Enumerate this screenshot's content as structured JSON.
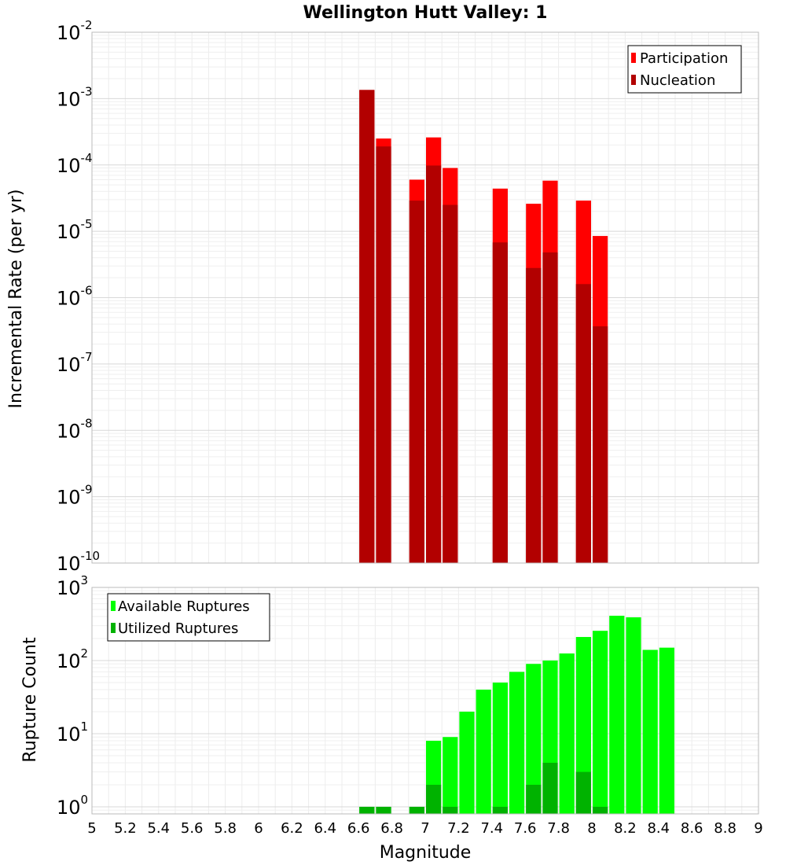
{
  "chart_data": [
    {
      "type": "bar",
      "title": "Wellington Hutt Valley: 1",
      "xlabel": "Magnitude",
      "ylabel": "Incremental Rate (per yr)",
      "yscale": "log",
      "xlim": [
        5,
        9
      ],
      "ylim": [
        1e-10,
        0.01
      ],
      "grid": true,
      "legend_position": "top-right",
      "bin_width": 0.1,
      "yticks": [
        {
          "base": "10",
          "exp": "-2"
        },
        {
          "base": "10",
          "exp": "-3"
        },
        {
          "base": "10",
          "exp": "-4"
        },
        {
          "base": "10",
          "exp": "-5"
        },
        {
          "base": "10",
          "exp": "-6"
        },
        {
          "base": "10",
          "exp": "-7"
        },
        {
          "base": "10",
          "exp": "-8"
        },
        {
          "base": "10",
          "exp": "-9"
        },
        {
          "base": "10",
          "exp": "-10"
        }
      ],
      "series": [
        {
          "name": "Participation",
          "color": "#ff0000",
          "x": [
            6.65,
            6.75,
            6.95,
            7.05,
            7.15,
            7.45,
            7.65,
            7.75,
            7.95,
            8.05
          ],
          "values": [
            0.00135,
            0.00025,
            6e-05,
            0.00026,
            9e-05,
            4.4e-05,
            2.6e-05,
            5.8e-05,
            2.9e-05,
            8.5e-06
          ]
        },
        {
          "name": "Nucleation",
          "color": "#b20000",
          "x": [
            6.65,
            6.75,
            6.95,
            7.05,
            7.15,
            7.45,
            7.65,
            7.75,
            7.95,
            8.05
          ],
          "values": [
            0.00135,
            0.00019,
            2.9e-05,
            9.8e-05,
            2.5e-05,
            6.8e-06,
            2.8e-06,
            4.8e-06,
            1.6e-06,
            3.7e-07
          ]
        }
      ]
    },
    {
      "type": "bar",
      "xlabel": "Magnitude",
      "ylabel": "Rupture Count",
      "yscale": "log",
      "xlim": [
        5,
        9
      ],
      "ylim": [
        0.8,
        1000
      ],
      "grid": true,
      "legend_position": "top-left",
      "bin_width": 0.1,
      "xticks": [
        "5",
        "5.2",
        "5.4",
        "5.6",
        "5.8",
        "6",
        "6.2",
        "6.4",
        "6.6",
        "6.8",
        "7",
        "7.2",
        "7.4",
        "7.6",
        "7.8",
        "8",
        "8.2",
        "8.4",
        "8.6",
        "8.8",
        "9"
      ],
      "yticks": [
        {
          "base": "10",
          "exp": "3"
        },
        {
          "base": "10",
          "exp": "2"
        },
        {
          "base": "10",
          "exp": "1"
        },
        {
          "base": "10",
          "exp": "0"
        }
      ],
      "series": [
        {
          "name": "Available Ruptures",
          "color": "#00ff00",
          "x": [
            6.65,
            6.75,
            6.95,
            7.05,
            7.15,
            7.25,
            7.35,
            7.45,
            7.55,
            7.65,
            7.75,
            7.85,
            7.95,
            8.05,
            8.15,
            8.25,
            8.35,
            8.45
          ],
          "values": [
            1,
            1,
            1,
            8,
            9,
            20,
            40,
            50,
            70,
            90,
            100,
            125,
            210,
            255,
            410,
            390,
            140,
            150
          ]
        },
        {
          "name": "Utilized Ruptures",
          "color": "#00b200",
          "x": [
            6.65,
            6.75,
            6.95,
            7.05,
            7.15,
            7.45,
            7.65,
            7.75,
            7.95,
            8.05
          ],
          "values": [
            1,
            1,
            1,
            2,
            1,
            1,
            2,
            4,
            3,
            1
          ]
        }
      ]
    }
  ]
}
